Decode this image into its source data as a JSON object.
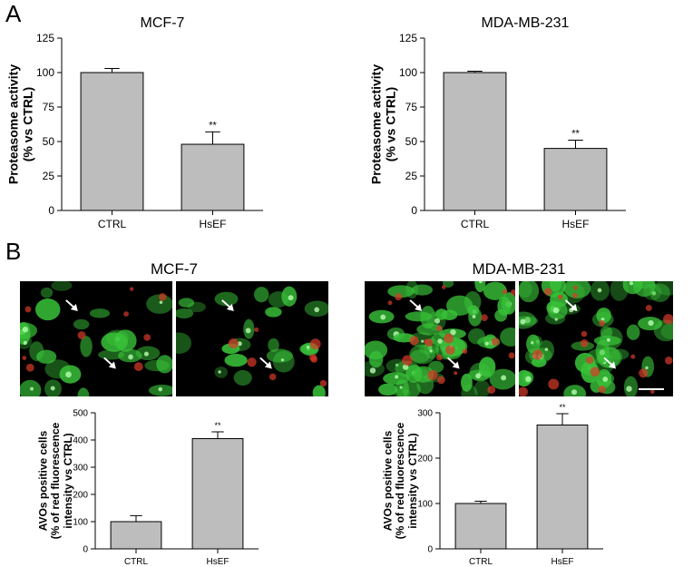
{
  "panels": {
    "a_label": "A",
    "b_label": "B",
    "b_titles": [
      "MCF-7",
      "MDA-MB-231"
    ]
  },
  "colors": {
    "bar_fill": "#bdbdbd",
    "bar_stroke": "#000000",
    "cell_green": "#38c038",
    "cell_red": "#d83a2a",
    "arrow": "#ffffff"
  },
  "chart_data": [
    {
      "type": "bar",
      "title": "MCF-7",
      "ylabel": "Proteasome activity\n(% vs CTRL)",
      "categories": [
        "CTRL",
        "HsEF"
      ],
      "values": [
        100,
        48
      ],
      "errors": [
        3,
        9
      ],
      "annotations": [
        "",
        "**"
      ],
      "ylim": [
        0,
        125
      ],
      "yticks": [
        0,
        25,
        50,
        75,
        100,
        125
      ],
      "grid": false
    },
    {
      "type": "bar",
      "title": "MDA-MB-231",
      "ylabel": "Proteasome activity\n(% vs CTRL)",
      "categories": [
        "CTRL",
        "HsEF"
      ],
      "values": [
        100,
        45
      ],
      "errors": [
        1,
        6
      ],
      "annotations": [
        "",
        "**"
      ],
      "ylim": [
        0,
        125
      ],
      "yticks": [
        0,
        25,
        50,
        75,
        100,
        125
      ],
      "grid": false
    },
    {
      "type": "bar",
      "title": "",
      "ylabel": "AVOs positive cells\n(% of red fluorescence\nintensity vs CTRL)",
      "categories": [
        "CTRL",
        "HsEF"
      ],
      "values": [
        100,
        405
      ],
      "errors": [
        22,
        25
      ],
      "annotations": [
        "",
        "**"
      ],
      "ylim": [
        0,
        500
      ],
      "yticks": [
        0,
        100,
        200,
        300,
        400,
        500
      ],
      "grid": false
    },
    {
      "type": "bar",
      "title": "",
      "ylabel": "AVOs positive cells\n(% of red fluorescence\nintensity vs CTRL)",
      "categories": [
        "CTRL",
        "HsEF"
      ],
      "values": [
        100,
        273
      ],
      "errors": [
        5,
        25
      ],
      "annotations": [
        "",
        "**"
      ],
      "ylim": [
        0,
        300
      ],
      "yticks": [
        0,
        100,
        200,
        300
      ],
      "grid": false
    }
  ]
}
